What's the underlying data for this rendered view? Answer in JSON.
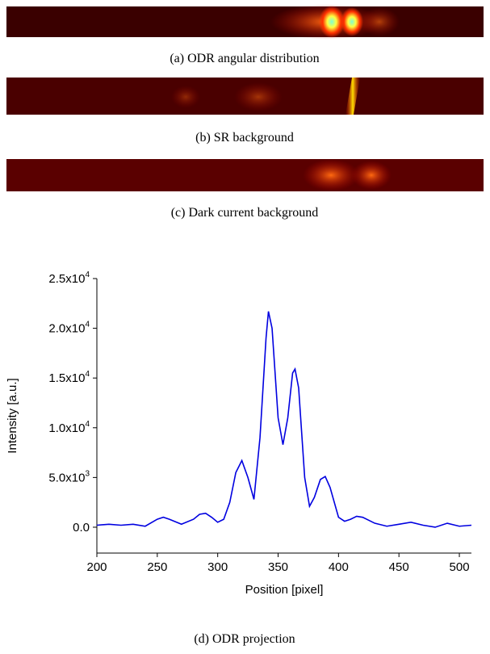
{
  "subfigure_captions": [
    "(a)  ODR angular distribution",
    "(b)  SR background",
    "(c)  Dark current background",
    "(d)  ODR projection"
  ],
  "chart_data": {
    "type": "line",
    "x_label": "Position [pixel]",
    "y_label": "Intensity [a.u.]",
    "xlim": [
      200,
      510
    ],
    "ylim": [
      -2600,
      25000
    ],
    "xticks": [
      200,
      250,
      300,
      350,
      400,
      450,
      500
    ],
    "yticks": [
      {
        "value": 0,
        "label": "0.0"
      },
      {
        "value": 5000,
        "label": "5.0x10^3"
      },
      {
        "value": 10000,
        "label": "1.0x10^4"
      },
      {
        "value": 15000,
        "label": "1.5x10^4"
      },
      {
        "value": 20000,
        "label": "2.0x10^4"
      },
      {
        "value": 25000,
        "label": "2.5x10^4"
      }
    ],
    "series": [
      {
        "color": "#0000e0",
        "x": [
          200,
          210,
          220,
          230,
          240,
          250,
          255,
          260,
          270,
          280,
          285,
          290,
          295,
          300,
          305,
          310,
          315,
          320,
          325,
          330,
          335,
          340,
          342,
          345,
          350,
          354,
          358,
          362,
          364,
          367,
          372,
          376,
          380,
          385,
          389,
          393,
          400,
          405,
          410,
          415,
          420,
          430,
          440,
          450,
          460,
          470,
          480,
          490,
          500,
          510
        ],
        "values": [
          200,
          300,
          200,
          300,
          100,
          800,
          1000,
          800,
          300,
          800,
          1300,
          1400,
          1000,
          500,
          800,
          2500,
          5500,
          6700,
          5000,
          2800,
          9000,
          19000,
          21700,
          20000,
          11000,
          8300,
          11000,
          15500,
          15900,
          14000,
          5000,
          2100,
          3000,
          4800,
          5100,
          4000,
          1000,
          600,
          800,
          1100,
          1000,
          400,
          100,
          300,
          500,
          200,
          0,
          400,
          100,
          200
        ]
      }
    ]
  }
}
